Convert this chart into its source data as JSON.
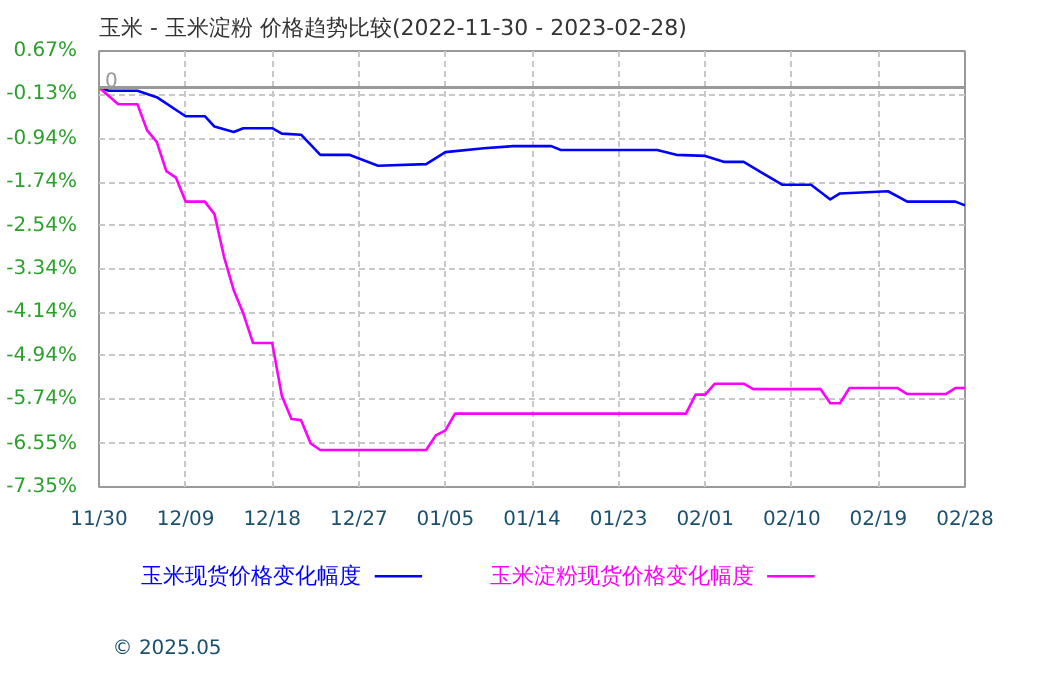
{
  "chart_data": {
    "type": "line",
    "title": "玉米 - 玉米淀粉 价格趋势比较(2022-11-30 - 2023-02-28)",
    "series": [
      {
        "name": "玉米现货价格变化幅度",
        "color": "#0000ff",
        "x": [
          "2022-11-30",
          "2022-12-01",
          "2022-12-04",
          "2022-12-06",
          "2022-12-09",
          "2022-12-11",
          "2022-12-12",
          "2022-12-14",
          "2022-12-15",
          "2022-12-18",
          "2022-12-19",
          "2022-12-21",
          "2022-12-23",
          "2022-12-26",
          "2022-12-29",
          "2023-01-03",
          "2023-01-05",
          "2023-01-09",
          "2023-01-12",
          "2023-01-16",
          "2023-01-17",
          "2023-01-27",
          "2023-01-29",
          "2023-02-01",
          "2023-02-03",
          "2023-02-05",
          "2023-02-07",
          "2023-02-09",
          "2023-02-12",
          "2023-02-14",
          "2023-02-15",
          "2023-02-20",
          "2023-02-22",
          "2023-02-27",
          "2023-02-28"
        ],
        "values": [
          0.0,
          -0.06,
          -0.06,
          -0.18,
          -0.53,
          -0.53,
          -0.72,
          -0.82,
          -0.75,
          -0.75,
          -0.85,
          -0.87,
          -1.24,
          -1.24,
          -1.44,
          -1.41,
          -1.19,
          -1.12,
          -1.08,
          -1.08,
          -1.15,
          -1.15,
          -1.24,
          -1.26,
          -1.37,
          -1.37,
          -1.58,
          -1.79,
          -1.79,
          -2.06,
          -1.95,
          -1.91,
          -2.1,
          -2.1,
          -2.17
        ]
      },
      {
        "name": "玉米淀粉现货价格变化幅度",
        "color": "#ff00ff",
        "x": [
          "2022-11-30",
          "2022-12-02",
          "2022-12-04",
          "2022-12-05",
          "2022-12-06",
          "2022-12-07",
          "2022-12-08",
          "2022-12-09",
          "2022-12-11",
          "2022-12-12",
          "2022-12-13",
          "2022-12-14",
          "2022-12-15",
          "2022-12-16",
          "2022-12-18",
          "2022-12-19",
          "2022-12-20",
          "2022-12-21",
          "2022-12-22",
          "2022-12-23",
          "2023-01-03",
          "2023-01-04",
          "2023-01-05",
          "2023-01-06",
          "2023-01-30",
          "2023-01-31",
          "2023-02-01",
          "2023-02-02",
          "2023-02-05",
          "2023-02-06",
          "2023-02-13",
          "2023-02-14",
          "2023-02-15",
          "2023-02-16",
          "2023-02-21",
          "2023-02-22",
          "2023-02-26",
          "2023-02-27",
          "2023-02-28"
        ],
        "values": [
          0.0,
          -0.31,
          -0.31,
          -0.79,
          -1.0,
          -1.54,
          -1.66,
          -2.1,
          -2.1,
          -2.33,
          -3.12,
          -3.73,
          -4.16,
          -4.7,
          -4.7,
          -5.67,
          -6.1,
          -6.12,
          -6.55,
          -6.67,
          -6.67,
          -6.4,
          -6.31,
          -6.0,
          -6.0,
          -5.65,
          -5.65,
          -5.45,
          -5.45,
          -5.55,
          -5.55,
          -5.81,
          -5.81,
          -5.53,
          -5.53,
          -5.64,
          -5.64,
          -5.53,
          -5.53
        ]
      }
    ],
    "xlim": [
      "2022-11-30",
      "2023-02-28"
    ],
    "xticks": [
      {
        "value": "2022-11-30",
        "label": "11/30"
      },
      {
        "value": "2022-12-09",
        "label": "12/09"
      },
      {
        "value": "2022-12-18",
        "label": "12/18"
      },
      {
        "value": "2022-12-27",
        "label": "12/27"
      },
      {
        "value": "2023-01-05",
        "label": "01/05"
      },
      {
        "value": "2023-01-14",
        "label": "01/14"
      },
      {
        "value": "2023-01-23",
        "label": "01/23"
      },
      {
        "value": "2023-02-01",
        "label": "02/01"
      },
      {
        "value": "2023-02-10",
        "label": "02/10"
      },
      {
        "value": "2023-02-19",
        "label": "02/19"
      },
      {
        "value": "2023-02-28",
        "label": "02/28"
      }
    ],
    "ylim": [
      -7.35,
      0.67
    ],
    "yticks": [
      {
        "value": 0.67,
        "label": "0.67%"
      },
      {
        "value": -0.13,
        "label": "-0.13%"
      },
      {
        "value": -0.94,
        "label": "-0.94%"
      },
      {
        "value": -1.74,
        "label": "-1.74%"
      },
      {
        "value": -2.54,
        "label": "-2.54%"
      },
      {
        "value": -3.34,
        "label": "-3.34%"
      },
      {
        "value": -4.14,
        "label": "-4.14%"
      },
      {
        "value": -4.94,
        "label": "-4.94%"
      },
      {
        "value": -5.74,
        "label": "-5.74%"
      },
      {
        "value": -6.55,
        "label": "-6.55%"
      },
      {
        "value": -7.35,
        "label": "-7.35%"
      }
    ],
    "ref_lines": [
      {
        "axis": "y",
        "value": 0,
        "label": "0",
        "color": "#999999"
      }
    ],
    "grid": true,
    "legend": "bottom",
    "marker": "none",
    "line_style": "solid",
    "annotations": [
      "© 2025.05"
    ]
  }
}
